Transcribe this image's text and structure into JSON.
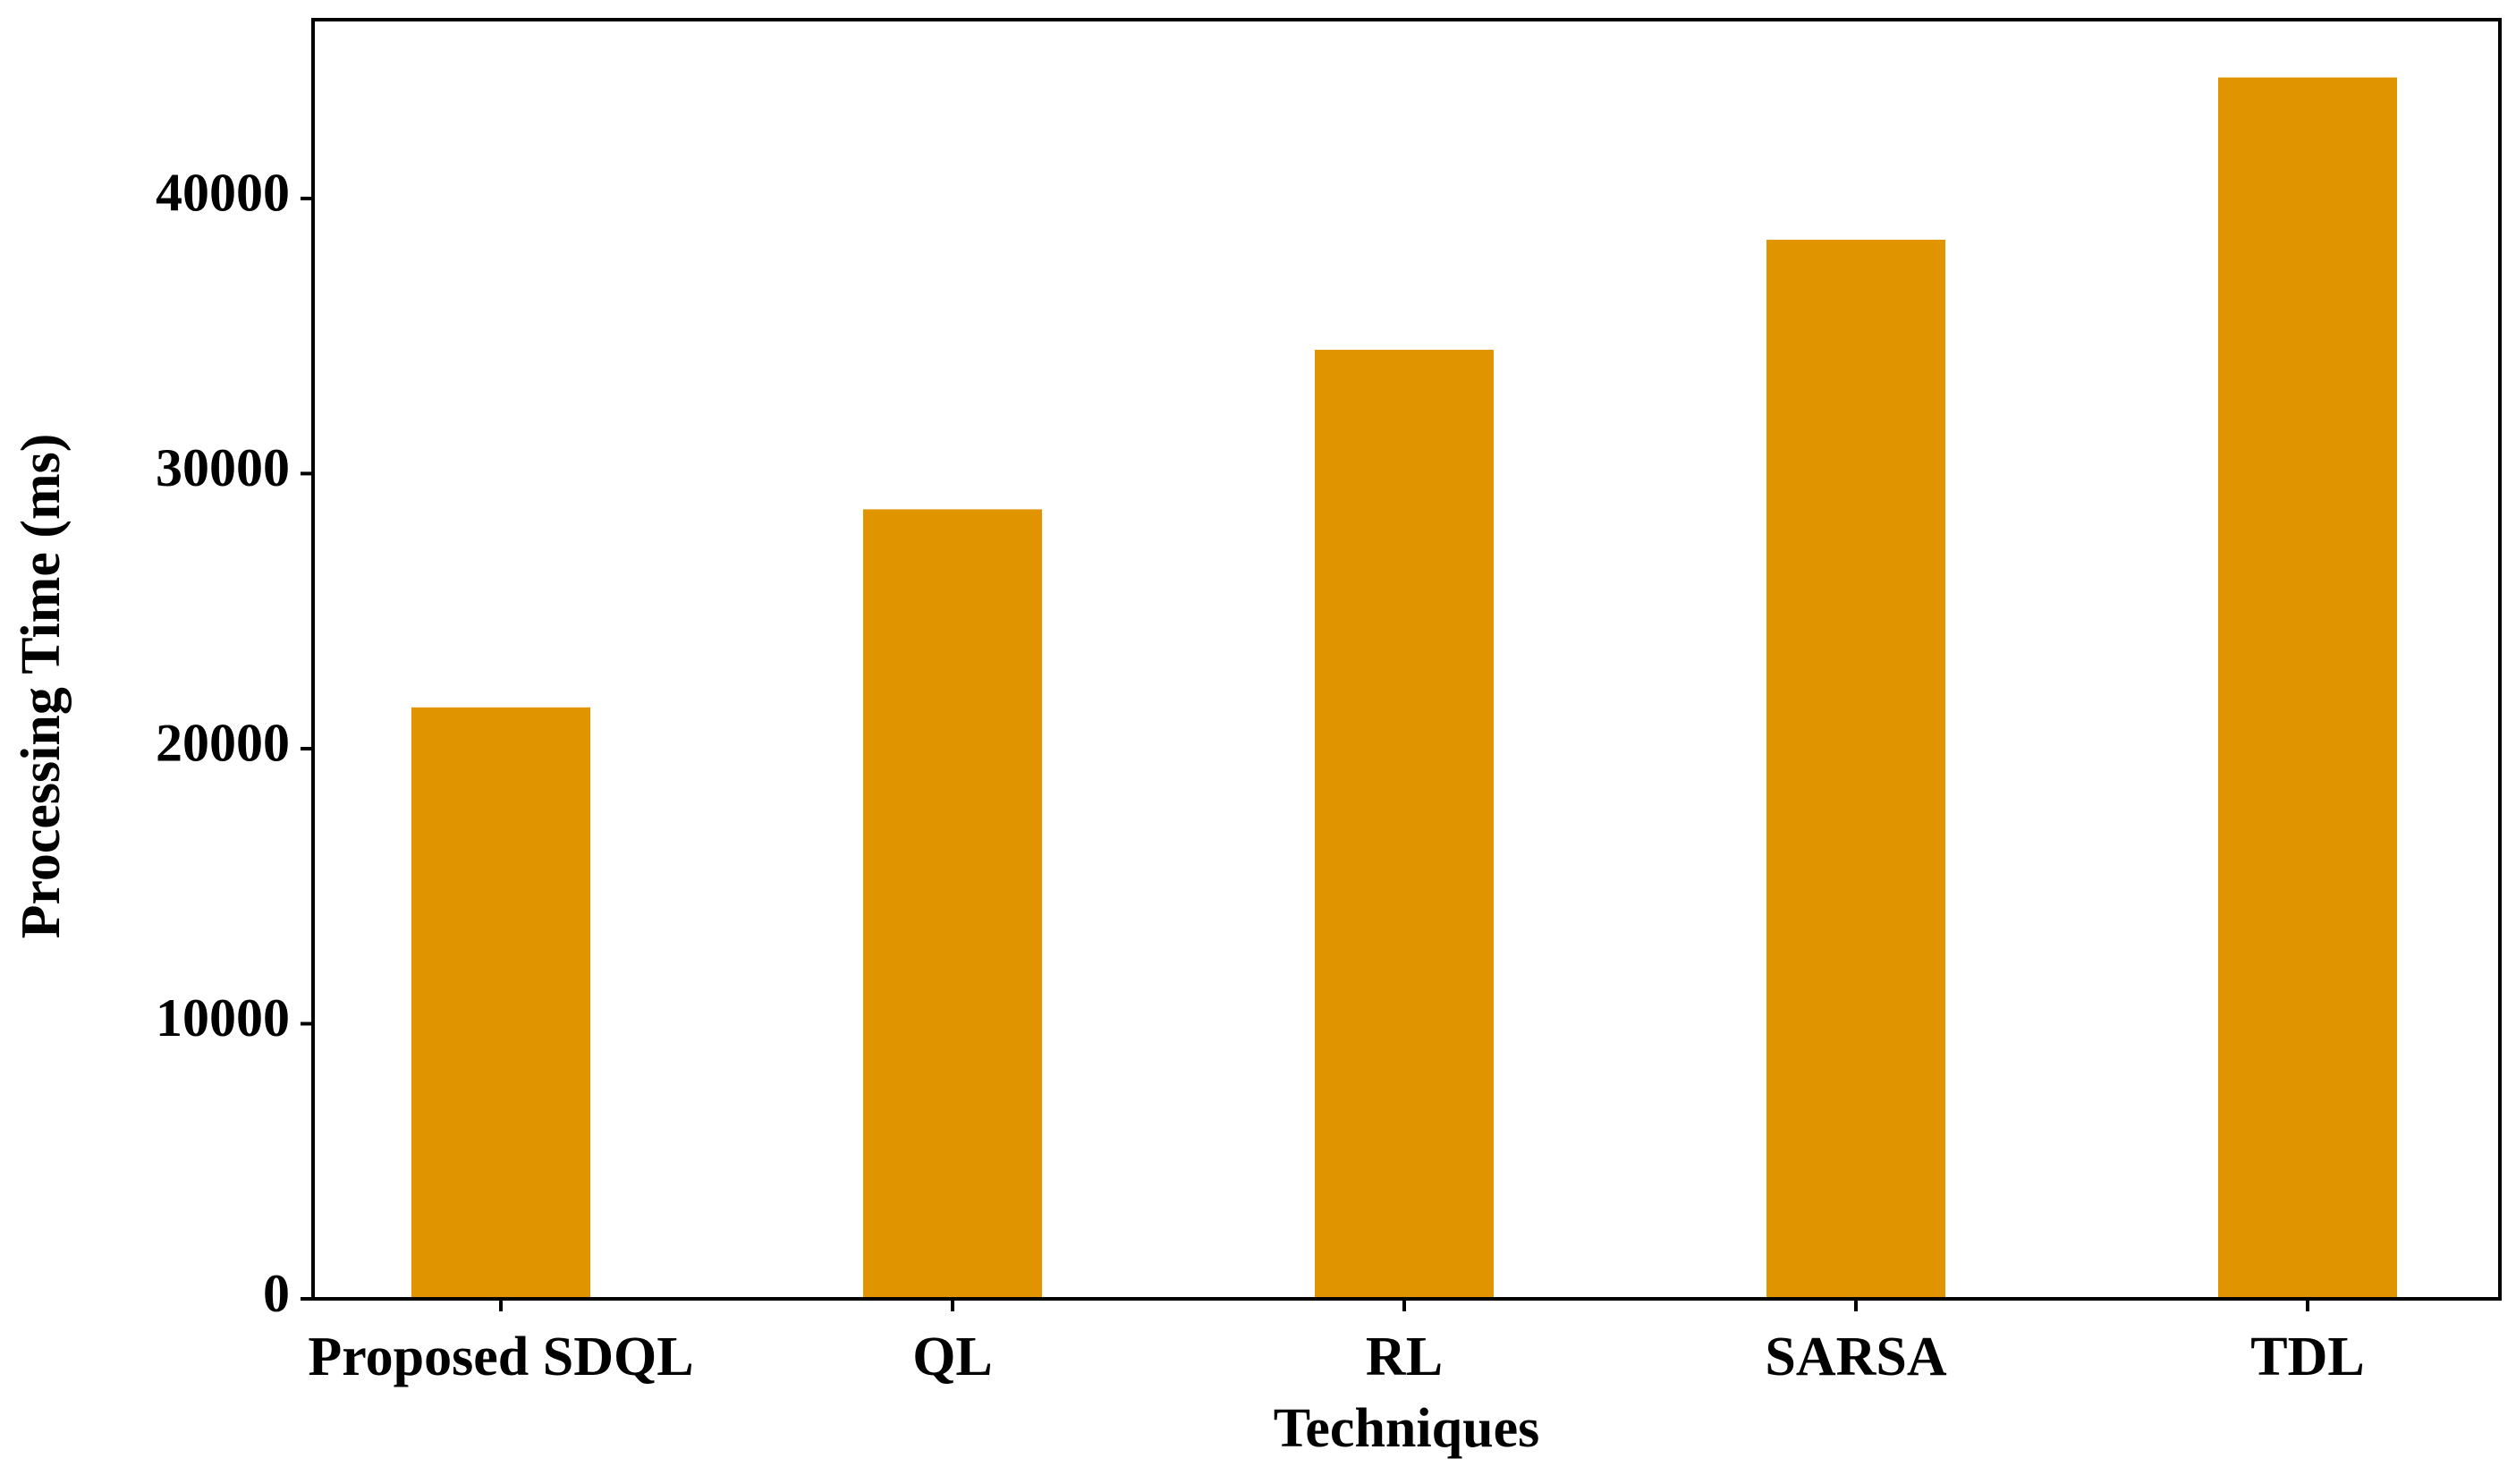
{
  "chart_data": {
    "type": "bar",
    "categories": [
      "Proposed SDQL",
      "QL",
      "RL",
      "SARSA",
      "TDL"
    ],
    "values": [
      21500,
      28700,
      34500,
      38500,
      44400
    ],
    "title": "",
    "xlabel": "Techniques",
    "ylabel": "Processing Time (ms)",
    "ylim": [
      0,
      46500
    ],
    "yticks": [
      0,
      10000,
      20000,
      30000,
      40000
    ],
    "ytick_labels": [
      "0",
      "10000",
      "20000",
      "30000",
      "40000"
    ],
    "grid": false,
    "legend": "none",
    "colors": {
      "bar": "#e09400",
      "axis": "#000000",
      "background": "#ffffff"
    }
  }
}
